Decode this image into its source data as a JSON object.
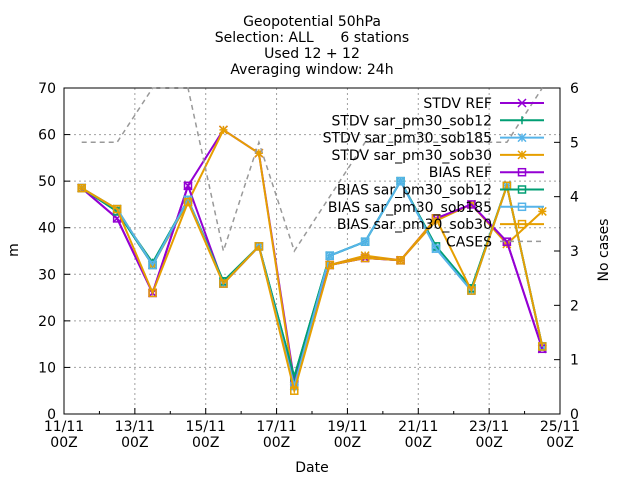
{
  "chart_data": {
    "type": "line",
    "title_lines": [
      "Geopotential 50hPa",
      "Selection: ALL      6 stations",
      "Used 12 + 12",
      "Averaging window: 24h"
    ],
    "xlabel": "Date",
    "ylabel": "m",
    "y2label": "No cases",
    "x_range": [
      "2023-11-11 00Z",
      "2023-11-25 00Z"
    ],
    "ylim": [
      0,
      70
    ],
    "y2lim": [
      0,
      6
    ],
    "grid": true,
    "legend_position": "top-right",
    "xticks": [
      {
        "d": 0,
        "line1": "11/11",
        "line2": "00Z"
      },
      {
        "d": 2,
        "line1": "13/11",
        "line2": "00Z"
      },
      {
        "d": 4,
        "line1": "15/11",
        "line2": "00Z"
      },
      {
        "d": 6,
        "line1": "17/11",
        "line2": "00Z"
      },
      {
        "d": 8,
        "line1": "19/11",
        "line2": "00Z"
      },
      {
        "d": 10,
        "line1": "21/11",
        "line2": "00Z"
      },
      {
        "d": 12,
        "line1": "23/11",
        "line2": "00Z"
      },
      {
        "d": 14,
        "line1": "25/11",
        "line2": "00Z"
      }
    ],
    "yticks": [
      "0",
      "10",
      "20",
      "30",
      "40",
      "50",
      "60",
      "70"
    ],
    "y2ticks": [
      "0",
      "1",
      "2",
      "3",
      "4",
      "5",
      "6"
    ],
    "x": [
      "11/11",
      "12/11",
      "13/11",
      "14/11",
      "15/11",
      "16/11",
      "17/11",
      "18/11",
      "19/11",
      "20/11",
      "21/11",
      "22/11",
      "23/11",
      "24/11"
    ],
    "series": [
      {
        "name": "STDV REF",
        "color": "#9400d3",
        "marker": "x",
        "axis": "y1",
        "values": [
          48.5,
          42,
          26,
          49,
          61,
          56,
          7,
          32,
          33.5,
          33,
          42,
          45,
          37,
          14
        ]
      },
      {
        "name": "STDV sar_pm30_sob12",
        "color": "#009e73",
        "marker": "plus",
        "axis": "y1",
        "values": [
          48.5,
          43.5,
          32.5,
          46,
          28.5,
          36,
          8,
          34,
          37,
          50,
          36,
          27,
          49,
          14.5
        ]
      },
      {
        "name": "STDV sar_pm30_sob185",
        "color": "#56b4e9",
        "marker": "star",
        "axis": "y1",
        "values": [
          48.5,
          44,
          32,
          46,
          28,
          36,
          6,
          34,
          37,
          50,
          35.5,
          26.5,
          49,
          14.5
        ]
      },
      {
        "name": "STDV sar_pm30_sob30",
        "color": "#e69f00",
        "marker": "star",
        "axis": "y1",
        "values": [
          48.5,
          44,
          32,
          45.5,
          61,
          56,
          6,
          32,
          34,
          33,
          41.5,
          45,
          36.5,
          43.5
        ]
      },
      {
        "name": "BIAS REF",
        "color": "#9400d3",
        "marker": "square",
        "axis": "y1",
        "values": [
          48.5,
          42,
          26,
          49,
          28,
          36,
          7,
          32,
          33.5,
          33,
          42,
          45,
          37,
          14
        ]
      },
      {
        "name": "BIAS sar_pm30_sob12",
        "color": "#009e73",
        "marker": "square",
        "axis": "y1",
        "values": [
          48.5,
          43.5,
          32,
          46,
          28.5,
          36,
          8,
          34,
          37,
          50,
          36,
          27,
          49,
          14.5
        ]
      },
      {
        "name": "BIAS sar_pm30_sob185",
        "color": "#56b4e9",
        "marker": "square",
        "axis": "y1",
        "values": [
          48.5,
          44,
          32,
          46,
          28,
          36,
          6,
          34,
          37,
          50,
          35.5,
          26.5,
          49,
          14.5
        ]
      },
      {
        "name": "BIAS sar_pm30_sob30",
        "color": "#e69f00",
        "marker": "square",
        "axis": "y1",
        "values": [
          48.5,
          44,
          26,
          45.5,
          28,
          36,
          5,
          32,
          33.5,
          33,
          42,
          26.5,
          49,
          14.5
        ]
      },
      {
        "name": "CASES",
        "color": "#999999",
        "marker": "none",
        "dashed": true,
        "axis": "y2",
        "values": [
          5,
          5,
          6,
          6,
          3,
          5,
          3,
          4,
          5,
          5,
          5,
          5,
          5,
          6
        ]
      }
    ]
  }
}
